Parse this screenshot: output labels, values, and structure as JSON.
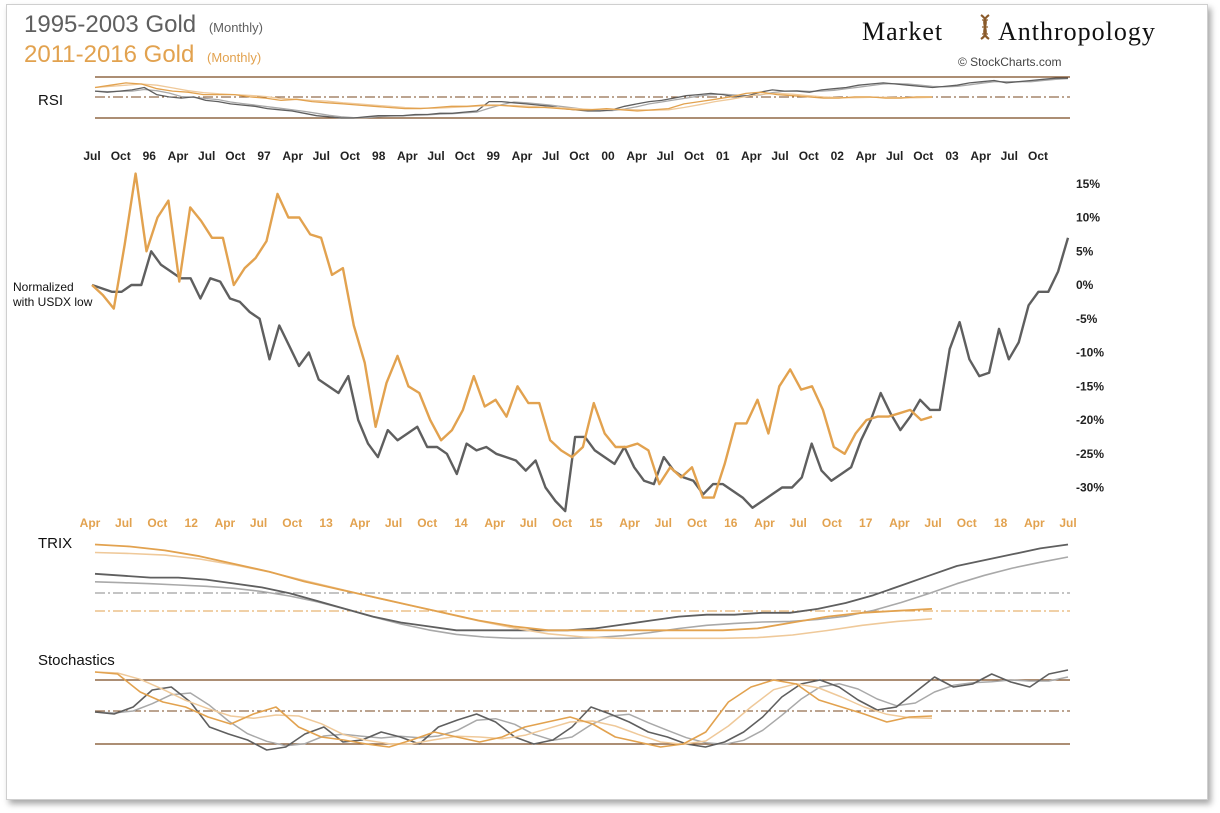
{
  "header": {
    "title1_main": "1995-2003 Gold",
    "title1_sub": "(Monthly)",
    "title2_main": "2011-2016  Gold",
    "title2_sub": "(Monthly)",
    "brand_left": "Market",
    "brand_right": "Anthropology",
    "credit": "© StockCharts.com"
  },
  "colors": {
    "gray": "#5f5f5f",
    "gray_light": "#a9a9a9",
    "orange": "#e2a24f",
    "orange_light": "#efc99a",
    "brown": "#7a4a22"
  },
  "chart_data": [
    {
      "type": "line",
      "panel": "RSI",
      "title": "RSI",
      "series": [
        {
          "values": [
            63,
            62,
            63,
            64,
            66,
            60,
            58,
            57,
            58,
            55,
            54,
            52,
            51,
            50,
            48,
            47,
            46,
            44,
            42,
            41,
            40,
            40,
            41,
            42,
            42,
            42,
            43,
            43,
            44,
            44,
            45,
            46,
            54,
            54,
            53,
            52,
            51,
            50,
            48,
            47,
            46,
            46,
            47,
            50,
            52,
            54,
            55,
            57,
            59,
            60,
            61,
            60,
            58,
            59,
            62,
            64,
            63,
            63,
            62,
            64,
            65,
            66,
            68,
            69,
            70,
            69,
            68,
            67,
            66,
            67,
            68,
            70,
            71,
            72,
            70,
            71,
            72,
            73,
            74,
            74
          ]
        },
        {
          "values": [
            66,
            68,
            70,
            69,
            65,
            63,
            62,
            60,
            60,
            60,
            58,
            57,
            55,
            56,
            54,
            53,
            52,
            51,
            50,
            49,
            48,
            48,
            49,
            50,
            50,
            51,
            51,
            50,
            49,
            49,
            48,
            47,
            47,
            48,
            47,
            46,
            47,
            48,
            52,
            54,
            56,
            58,
            61,
            62,
            60,
            59,
            58,
            57,
            57,
            58,
            58,
            57,
            57,
            58,
            58
          ]
        }
      ]
    },
    {
      "type": "line",
      "panel": "price",
      "ylim": [
        -30,
        15
      ],
      "y_ticks": [
        "15%",
        "10%",
        "5%",
        "0%",
        "-5%",
        "-10%",
        "-15%",
        "-20%",
        "-25%",
        "-30%"
      ],
      "x_ticks_top": [
        "Jul",
        "Oct",
        "96",
        "Apr",
        "Jul",
        "Oct",
        "97",
        "Apr",
        "Jul",
        "Oct",
        "98",
        "Apr",
        "Jul",
        "Oct",
        "99",
        "Apr",
        "Jul",
        "Oct",
        "00",
        "Apr",
        "Jul",
        "Oct",
        "01",
        "Apr",
        "Jul",
        "Oct",
        "02",
        "Apr",
        "Jul",
        "Oct",
        "03",
        "Apr",
        "Jul",
        "Oct"
      ],
      "x_ticks_bottom": [
        "Apr",
        "Jul",
        "Oct",
        "12",
        "Apr",
        "Jul",
        "Oct",
        "13",
        "Apr",
        "Jul",
        "Oct",
        "14",
        "Apr",
        "Jul",
        "Oct",
        "15",
        "Apr",
        "Jul",
        "Oct",
        "16",
        "Apr",
        "Jul",
        "Oct",
        "17",
        "Apr",
        "Jul",
        "Oct",
        "18",
        "Apr",
        "Jul"
      ],
      "annotation": "Normalized with USDX low",
      "series": [
        {
          "values": [
            0,
            -0.5,
            -1,
            -1,
            0,
            0,
            5,
            3,
            2,
            1,
            1,
            -2,
            1,
            0.5,
            -2,
            -2.5,
            -4,
            -5,
            -11,
            -6,
            -9,
            -12,
            -10,
            -14,
            -15,
            -16,
            -13.5,
            -20,
            -23.5,
            -25.5,
            -21.5,
            -23,
            -22,
            -21,
            -24,
            -24,
            -25,
            -28,
            -23.5,
            -24.5,
            -24,
            -25,
            -25.5,
            -26,
            -27.5,
            -26,
            -30,
            -32,
            -33.5,
            -22.5,
            -22.5,
            -24.5,
            -25.5,
            -26.5,
            -24,
            -27,
            -29,
            -29.5,
            -25.5,
            -27.5,
            -28.5,
            -29,
            -31,
            -29.5,
            -29.5,
            -30.5,
            -31.5,
            -33,
            -32,
            -31,
            -30,
            -30,
            -28.5,
            -23.5,
            -27.5,
            -29,
            -28,
            -27,
            -23,
            -20,
            -16,
            -19,
            -21.5,
            -19.5,
            -17,
            -18.5,
            -18.5,
            -9.5,
            -5.5,
            -11,
            -13.5,
            -13,
            -6.5,
            -11,
            -8.5,
            -3,
            -1,
            -1,
            2,
            7
          ]
        },
        {
          "values": [
            0,
            -1.5,
            -3.5,
            6,
            16.5,
            5,
            10,
            12.5,
            0.5,
            11.5,
            9.5,
            7,
            7,
            0,
            2.5,
            4,
            6.5,
            13.5,
            10,
            10,
            7.5,
            7,
            1.5,
            2.5,
            -6,
            -11.5,
            -21,
            -14.5,
            -10.5,
            -15,
            -16,
            -20,
            -23,
            -21.5,
            -18.5,
            -13.5,
            -18,
            -17,
            -19.5,
            -15,
            -17.5,
            -17.5,
            -23,
            -24.5,
            -25.5,
            -24,
            -17.5,
            -22,
            -24,
            -24,
            -23.5,
            -24.5,
            -29.5,
            -27,
            -28.5,
            -27,
            -31.5,
            -31.5,
            -26.5,
            -20.5,
            -20.5,
            -17,
            -22,
            -15,
            -12.5,
            -15.5,
            -15,
            -18.5,
            -24,
            -25,
            -22,
            -20,
            -19.5,
            -19.5,
            -19,
            -18.5,
            -20,
            -19.5
          ]
        }
      ]
    },
    {
      "type": "line",
      "panel": "TRIX",
      "title": "TRIX",
      "series": [
        {
          "values": [
            35,
            34,
            33,
            33,
            32,
            30,
            28,
            25,
            21,
            17,
            13,
            10,
            8,
            6,
            6,
            6,
            6,
            6,
            7,
            9,
            11,
            13,
            14,
            14,
            15,
            15,
            17,
            20,
            24,
            29,
            34,
            39,
            42,
            45,
            48,
            50
          ]
        },
        {
          "values": [
            50,
            49,
            47,
            44,
            40,
            36,
            31,
            27,
            23,
            19,
            15,
            11,
            8,
            6,
            6,
            6,
            6,
            6,
            6,
            7,
            10,
            13,
            15,
            16,
            17
          ]
        }
      ]
    },
    {
      "type": "line",
      "panel": "Stochastics",
      "title": "Stochastics",
      "series": [
        {
          "values": [
            50,
            48,
            55,
            72,
            75,
            60,
            35,
            28,
            22,
            12,
            15,
            28,
            35,
            20,
            22,
            30,
            25,
            18,
            35,
            42,
            48,
            40,
            25,
            18,
            22,
            35,
            55,
            48,
            40,
            30,
            25,
            18,
            15,
            20,
            30,
            45,
            65,
            78,
            82,
            75,
            62,
            52,
            55,
            70,
            85,
            75,
            78,
            88,
            80,
            75,
            88,
            92
          ]
        },
        {
          "values": [
            90,
            88,
            70,
            60,
            55,
            45,
            38,
            48,
            55,
            35,
            25,
            22,
            18,
            15,
            22,
            30,
            25,
            20,
            25,
            35,
            40,
            45,
            38,
            25,
            20,
            15,
            18,
            30,
            60,
            75,
            82,
            78,
            62,
            55,
            48,
            40,
            45,
            46
          ]
        }
      ]
    }
  ]
}
